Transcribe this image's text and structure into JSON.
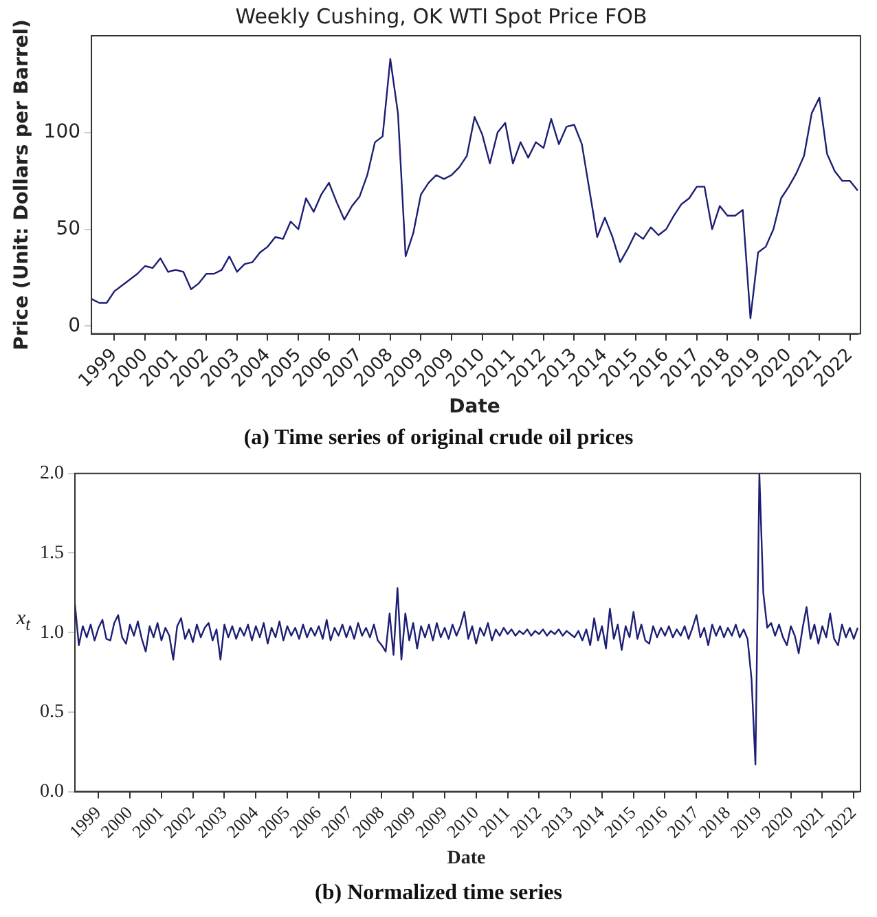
{
  "chart_data": [
    {
      "type": "line",
      "title": "Weekly Cushing, OK WTI Spot Price FOB",
      "xlabel": "Date",
      "ylabel": "Price (Unit: Dollars per Barrel)",
      "annotations": [
        "(a) Time series of original crude oil prices"
      ],
      "grid": false,
      "legend": false,
      "categories": [
        null,
        null,
        null,
        "1999",
        null,
        null,
        null,
        "2000",
        null,
        null,
        null,
        "2001",
        null,
        null,
        null,
        "2002",
        null,
        null,
        null,
        "2003",
        null,
        null,
        null,
        "2004",
        null,
        null,
        null,
        "2005",
        null,
        null,
        null,
        "2006",
        null,
        null,
        null,
        "2007",
        null,
        null,
        null,
        "2008",
        null,
        null,
        null,
        "2009",
        null,
        null,
        null,
        "2009",
        null,
        null,
        null,
        "2010",
        null,
        null,
        null,
        "2011",
        null,
        null,
        null,
        "2012",
        null,
        null,
        null,
        "2013",
        null,
        null,
        null,
        "2014",
        null,
        null,
        null,
        "2015",
        null,
        null,
        null,
        "2016",
        null,
        null,
        null,
        "2017",
        null,
        null,
        null,
        "2018",
        null,
        null,
        null,
        "2019",
        null,
        null,
        null,
        "2020",
        null,
        null,
        null,
        "2021",
        null,
        null,
        null,
        "2022",
        null
      ],
      "ylim": [
        -4,
        150
      ],
      "yticks": [
        0,
        50,
        100
      ],
      "series": [
        {
          "color": "#1c1f73",
          "values": [
            14,
            12,
            12,
            18,
            21,
            24,
            27,
            31,
            30,
            35,
            28,
            29,
            28,
            19,
            22,
            27,
            27,
            29,
            36,
            28,
            32,
            33,
            38,
            41,
            46,
            45,
            54,
            50,
            66,
            59,
            68,
            74,
            64,
            55,
            62,
            67,
            78,
            95,
            98,
            138,
            110,
            36,
            48,
            68,
            74,
            78,
            76,
            78,
            82,
            88,
            108,
            99,
            84,
            100,
            105,
            84,
            95,
            87,
            95,
            92,
            107,
            94,
            103,
            104,
            94,
            70,
            46,
            56,
            46,
            33,
            40,
            48,
            45,
            51,
            47,
            50,
            57,
            63,
            66,
            72,
            72,
            50,
            62,
            57,
            57,
            60,
            4,
            38,
            41,
            50,
            66,
            72,
            79,
            88,
            110,
            118,
            89,
            80,
            75,
            75,
            70
          ]
        }
      ]
    },
    {
      "type": "line",
      "xlabel": "Date",
      "ylabel": "x$_{t}$",
      "annotations": [
        "(b) Normalized time series"
      ],
      "grid": false,
      "legend": false,
      "categories": [
        null,
        null,
        null,
        null,
        null,
        null,
        "1999",
        null,
        null,
        null,
        null,
        null,
        null,
        null,
        "2000",
        null,
        null,
        null,
        null,
        null,
        null,
        null,
        "2001",
        null,
        null,
        null,
        null,
        null,
        null,
        null,
        "2002",
        null,
        null,
        null,
        null,
        null,
        null,
        null,
        "2003",
        null,
        null,
        null,
        null,
        null,
        null,
        null,
        "2004",
        null,
        null,
        null,
        null,
        null,
        null,
        null,
        "2005",
        null,
        null,
        null,
        null,
        null,
        null,
        null,
        "2006",
        null,
        null,
        null,
        null,
        null,
        null,
        null,
        "2007",
        null,
        null,
        null,
        null,
        null,
        null,
        null,
        "2008",
        null,
        null,
        null,
        null,
        null,
        null,
        null,
        "2009",
        null,
        null,
        null,
        null,
        null,
        null,
        null,
        "2009",
        null,
        null,
        null,
        null,
        null,
        null,
        null,
        "2010",
        null,
        null,
        null,
        null,
        null,
        null,
        null,
        "2011",
        null,
        null,
        null,
        null,
        null,
        null,
        null,
        "2012",
        null,
        null,
        null,
        null,
        null,
        null,
        null,
        "2013",
        null,
        null,
        null,
        null,
        null,
        null,
        null,
        "2014",
        null,
        null,
        null,
        null,
        null,
        null,
        null,
        "2015",
        null,
        null,
        null,
        null,
        null,
        null,
        null,
        "2016",
        null,
        null,
        null,
        null,
        null,
        null,
        null,
        "2017",
        null,
        null,
        null,
        null,
        null,
        null,
        null,
        "2018",
        null,
        null,
        null,
        null,
        null,
        null,
        null,
        "2019",
        null,
        null,
        null,
        null,
        null,
        null,
        null,
        "2020",
        null,
        null,
        null,
        null,
        null,
        null,
        null,
        "2021",
        null,
        null,
        null,
        null,
        null,
        null,
        null,
        "2022",
        null
      ],
      "ylim": [
        0,
        2
      ],
      "yticks": [
        {
          "value": 0,
          "label": "0.0"
        },
        {
          "value": 0.5,
          "label": "0.5"
        },
        {
          "value": 1,
          "label": "1.0"
        },
        {
          "value": 1.5,
          "label": "1.5"
        },
        {
          "value": 2,
          "label": "2.0"
        }
      ],
      "series": [
        {
          "color": "#1c1f73",
          "values": [
            1.18,
            0.92,
            1.04,
            0.97,
            1.05,
            0.95,
            1.03,
            1.08,
            0.96,
            0.95,
            1.06,
            1.11,
            0.97,
            0.93,
            1.05,
            0.98,
            1.07,
            0.96,
            0.88,
            1.04,
            0.97,
            1.06,
            0.95,
            1.03,
            0.98,
            0.83,
            1.04,
            1.09,
            0.96,
            1.02,
            0.94,
            1.05,
            0.97,
            1.03,
            1.06,
            0.95,
            1.02,
            0.83,
            1.05,
            0.97,
            1.04,
            0.96,
            1.03,
            0.98,
            1.05,
            0.95,
            1.04,
            0.97,
            1.06,
            0.93,
            1.03,
            0.97,
            1.07,
            0.95,
            1.04,
            0.98,
            1.03,
            0.96,
            1.05,
            0.97,
            1.03,
            0.98,
            1.04,
            0.96,
            1.08,
            0.95,
            1.03,
            0.98,
            1.05,
            0.97,
            1.04,
            0.96,
            1.06,
            0.98,
            1.03,
            0.97,
            1.05,
            0.95,
            0.92,
            0.88,
            1.12,
            0.86,
            1.28,
            0.83,
            1.12,
            0.95,
            1.06,
            0.9,
            1.04,
            0.97,
            1.05,
            0.95,
            1.06,
            0.97,
            1.03,
            0.96,
            1.05,
            0.98,
            1.04,
            1.13,
            0.96,
            1.04,
            0.93,
            1.03,
            0.98,
            1.06,
            0.95,
            1.02,
            0.98,
            1.03,
            0.99,
            1.02,
            0.98,
            1.01,
            0.99,
            1.02,
            0.98,
            1.01,
            0.99,
            1.02,
            0.98,
            1.01,
            0.99,
            1.02,
            0.98,
            1.01,
            0.99,
            0.97,
            1.01,
            0.95,
            1.02,
            0.92,
            1.09,
            0.95,
            1.04,
            0.9,
            1.15,
            0.96,
            1.05,
            0.89,
            1.04,
            0.97,
            1.13,
            0.96,
            1.05,
            0.95,
            0.93,
            1.04,
            0.97,
            1.03,
            0.98,
            1.04,
            0.97,
            1.02,
            0.98,
            1.04,
            0.96,
            1.03,
            1.11,
            0.97,
            1.03,
            0.92,
            1.05,
            0.98,
            1.04,
            0.97,
            1.03,
            0.98,
            1.05,
            0.97,
            1.02,
            0.96,
            0.71,
            0.17,
            2.0,
            1.25,
            1.03,
            1.06,
            0.98,
            1.05,
            0.97,
            0.92,
            1.04,
            0.98,
            0.87,
            1.03,
            1.16,
            0.96,
            1.05,
            0.93,
            1.04,
            0.97,
            1.12,
            0.96,
            0.92,
            1.05,
            0.97,
            1.03,
            0.96,
            1.03
          ]
        }
      ]
    }
  ]
}
